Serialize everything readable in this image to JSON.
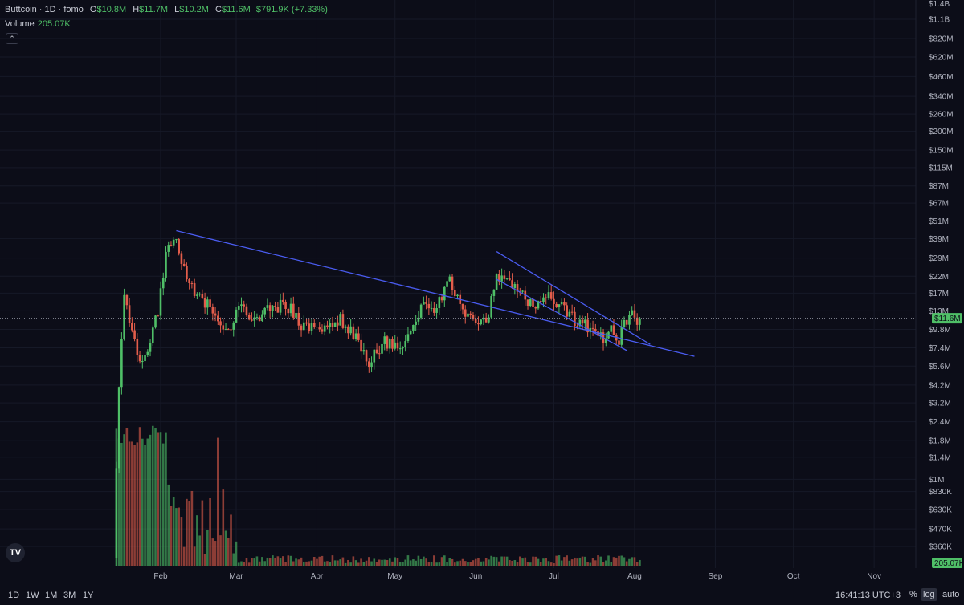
{
  "legend": {
    "symbol": "Buttcoin · 1D · fomo",
    "o_label": "O",
    "o_value": "$10.8M",
    "h_label": "H",
    "h_value": "$11.7M",
    "l_label": "L",
    "l_value": "$10.2M",
    "c_label": "C",
    "c_value": "$11.6M",
    "change": "$791.9K (+7.33%)",
    "volume_label": "Volume",
    "volume_value": "205.07K",
    "collapse_icon": "chevron-up-icon"
  },
  "bottom_bar": {
    "timeframes": [
      "1D",
      "1W",
      "1M",
      "3M",
      "1Y"
    ],
    "clock": "16:41:13 UTC+3",
    "options": [
      "%",
      "log",
      "auto"
    ],
    "active_option": "log"
  },
  "colors": {
    "up": "#4fbf67",
    "down": "#e35d4b",
    "trendline": "#4a5cf0",
    "background": "#0c0d18"
  },
  "chart_data": {
    "type": "candlestick",
    "scale": "log",
    "x_ticks": [
      "Feb",
      "Mar",
      "Apr",
      "May",
      "Jun",
      "Jul",
      "Aug",
      "Sep",
      "Oct",
      "Nov"
    ],
    "y_ticks": [
      "$1.4B",
      "$1.1B",
      "$820M",
      "$620M",
      "$460M",
      "$340M",
      "$260M",
      "$200M",
      "$150M",
      "$115M",
      "$87M",
      "$67M",
      "$51M",
      "$39M",
      "$29M",
      "$22M",
      "$17M",
      "$13M",
      "$9.8M",
      "$7.4M",
      "$5.6M",
      "$4.2M",
      "$3.2M",
      "$2.4M",
      "$1.8M",
      "$1.4M",
      "$1M",
      "$830K",
      "$630K",
      "$470K",
      "$360K"
    ],
    "y_ticks_values": [
      1400000000,
      1100000000,
      820000000,
      620000000,
      460000000,
      340000000,
      260000000,
      200000000,
      150000000,
      115000000,
      87000000,
      67000000,
      51000000,
      39000000,
      29000000,
      22000000,
      17000000,
      13000000,
      9800000,
      7400000,
      5600000,
      4200000,
      3200000,
      2400000,
      1800000,
      1400000,
      1000000,
      830000,
      630000,
      470000,
      360000
    ],
    "last_price_label": "$11.6M",
    "last_price": 11600000,
    "last_volume_label": "205.07K",
    "price_path": [
      [
        "2024-01-15",
        300000
      ],
      [
        "2024-01-17",
        4000000
      ],
      [
        "2024-01-19",
        16000000
      ],
      [
        "2024-01-22",
        10000000
      ],
      [
        "2024-01-25",
        5500000
      ],
      [
        "2024-01-28",
        7000000
      ],
      [
        "2024-02-01",
        13000000
      ],
      [
        "2024-02-04",
        30000000
      ],
      [
        "2024-02-07",
        42000000
      ],
      [
        "2024-02-10",
        26000000
      ],
      [
        "2024-02-15",
        17000000
      ],
      [
        "2024-02-20",
        14000000
      ],
      [
        "2024-02-24",
        12000000
      ],
      [
        "2024-02-28",
        9800000
      ],
      [
        "2024-03-04",
        15000000
      ],
      [
        "2024-03-08",
        11000000
      ],
      [
        "2024-03-14",
        13000000
      ],
      [
        "2024-03-21",
        14500000
      ],
      [
        "2024-03-28",
        10000000
      ],
      [
        "2024-04-04",
        9500000
      ],
      [
        "2024-04-11",
        11500000
      ],
      [
        "2024-04-17",
        8500000
      ],
      [
        "2024-04-22",
        6000000
      ],
      [
        "2024-04-28",
        8000000
      ],
      [
        "2024-05-03",
        7200000
      ],
      [
        "2024-05-08",
        10000000
      ],
      [
        "2024-05-13",
        14000000
      ],
      [
        "2024-05-18",
        13500000
      ],
      [
        "2024-05-23",
        20000000
      ],
      [
        "2024-05-28",
        14000000
      ],
      [
        "2024-06-02",
        10000000
      ],
      [
        "2024-06-07",
        12000000
      ],
      [
        "2024-06-10",
        23000000
      ],
      [
        "2024-06-14",
        20000000
      ],
      [
        "2024-06-20",
        16000000
      ],
      [
        "2024-06-25",
        14500000
      ],
      [
        "2024-07-01",
        16500000
      ],
      [
        "2024-07-06",
        13000000
      ],
      [
        "2024-07-11",
        11000000
      ],
      [
        "2024-07-16",
        10000000
      ],
      [
        "2024-07-20",
        8500000
      ],
      [
        "2024-07-24",
        9500000
      ],
      [
        "2024-07-27",
        8500000
      ],
      [
        "2024-07-29",
        11500000
      ],
      [
        "2024-08-01",
        12000000
      ],
      [
        "2024-08-03",
        11600000
      ]
    ],
    "volume_bursts": [
      [
        "2024-01-16",
        2400000
      ],
      [
        "2024-02-04",
        1400000
      ],
      [
        "2024-02-07",
        1000000
      ],
      [
        "2024-02-23",
        2200000
      ],
      [
        "2024-01-26",
        900000
      ]
    ],
    "trendlines": [
      {
        "from": [
          "2024-02-07",
          44000000
        ],
        "to": [
          "2024-08-24",
          6500000
        ]
      },
      {
        "from": [
          "2024-06-09",
          32000000
        ],
        "to": [
          "2024-08-07",
          7800000
        ]
      },
      {
        "from": [
          "2024-06-09",
          21000000
        ],
        "to": [
          "2024-07-29",
          7100000
        ]
      }
    ]
  }
}
